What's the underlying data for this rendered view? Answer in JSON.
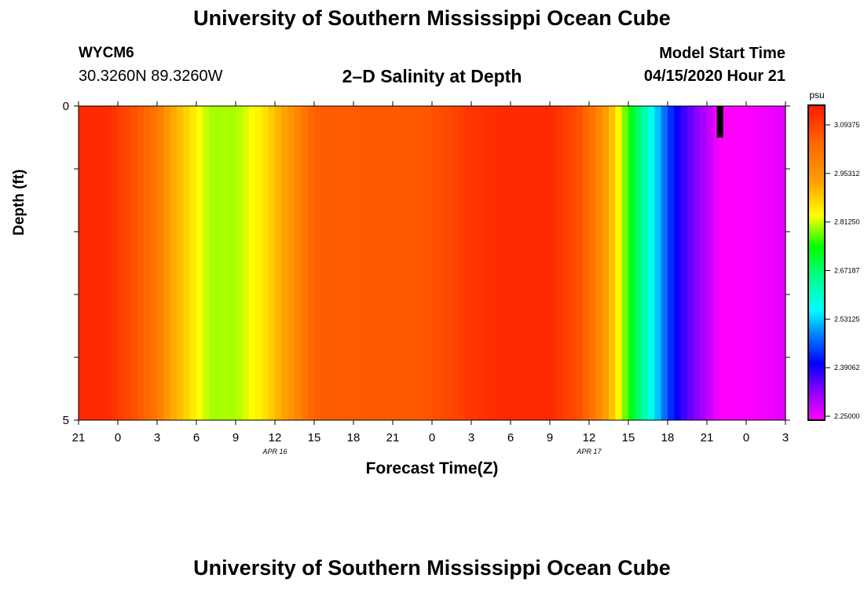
{
  "header": {
    "title": "University of Southern Mississippi Ocean Cube",
    "station": "WYCM6",
    "coords": "30.3260N 89.3260W",
    "subtitle": "2–D Salinity at Depth",
    "model_start_label": "Model Start Time",
    "model_start_value": "04/15/2020 Hour 21",
    "footer_title": "University of Southern Mississippi Ocean Cube"
  },
  "chart_data": {
    "type": "heatmap",
    "title": "2–D Salinity at Depth",
    "xlabel": "Forecast Time(Z)",
    "ylabel": "Depth (ft)",
    "x_tick_labels": [
      "21",
      "0",
      "3",
      "6",
      "9",
      "12",
      "15",
      "18",
      "21",
      "0",
      "3",
      "6",
      "9",
      "12",
      "15",
      "18",
      "21",
      "0",
      "3"
    ],
    "x_range_hours": [
      0,
      54
    ],
    "date_labels": [
      {
        "text": "APR 16",
        "hour": 15
      },
      {
        "text": "APR 17",
        "hour": 39
      }
    ],
    "y_tick_labels": [
      "0",
      "5"
    ],
    "ylim": [
      0,
      5
    ],
    "units": "psu",
    "colorbar_ticks": [
      "3.09375",
      "2.95312",
      "2.81250",
      "2.67187",
      "2.53125",
      "2.39062",
      "2.25000"
    ],
    "value_range": [
      2.25,
      3.16
    ],
    "x_hours": [
      0,
      2,
      4,
      6,
      7,
      9,
      10,
      12,
      14,
      16,
      18,
      22,
      26,
      28,
      30,
      33,
      36,
      38,
      39,
      40,
      41,
      42,
      43,
      44,
      45,
      46,
      48,
      49,
      51,
      54
    ],
    "salinity_psu": [
      3.14,
      3.14,
      3.09,
      3.02,
      2.94,
      2.85,
      2.81,
      2.81,
      2.86,
      2.95,
      3.06,
      3.07,
      3.07,
      3.09,
      3.12,
      3.14,
      3.14,
      3.09,
      3.04,
      2.97,
      2.88,
      2.76,
      2.66,
      2.56,
      2.46,
      2.39,
      2.3,
      2.25,
      2.25,
      2.27
    ],
    "marker": {
      "hour": 49,
      "depth_from": 0,
      "depth_to": 0.5,
      "color": "#000000"
    }
  }
}
